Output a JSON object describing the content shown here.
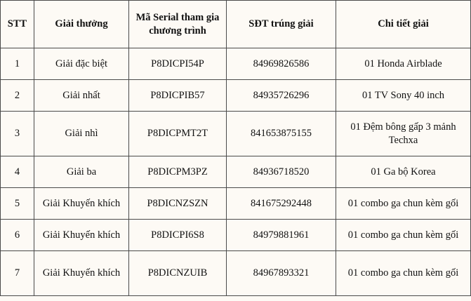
{
  "table": {
    "header": [
      "STT",
      "Giải thưởng",
      "Mã Serial tham gia chương trình",
      "SĐT trúng giải",
      "Chi tiết giải"
    ],
    "rows": [
      [
        "1",
        "Giải đặc biệt",
        "P8DICPI54P",
        "84969826586",
        "01 Honda Airblade"
      ],
      [
        "2",
        "Giải nhất",
        "P8DICPIB57",
        "84935726296",
        "01 TV Sony 40 inch"
      ],
      [
        "3",
        "Giải nhì",
        "P8DICPMT2T",
        "841653875155",
        "01 Đệm bông gấp 3 mảnh Techxa"
      ],
      [
        "4",
        "Giải ba",
        "P8DICPM3PZ",
        "84936718520",
        "01 Ga bộ Korea"
      ],
      [
        "5",
        "Giải Khuyến khích",
        "P8DICNZSZN",
        "841675292448",
        "01 combo ga chun kèm gối"
      ],
      [
        "6",
        "Giải Khuyến khích",
        "P8DICPI6S8",
        "84979881961",
        "01 combo ga chun kèm gối"
      ],
      [
        "7",
        "Giải Khuyến khích",
        "P8DICNZUIB",
        "84967893321",
        "01 combo ga chun kèm gối"
      ]
    ]
  }
}
